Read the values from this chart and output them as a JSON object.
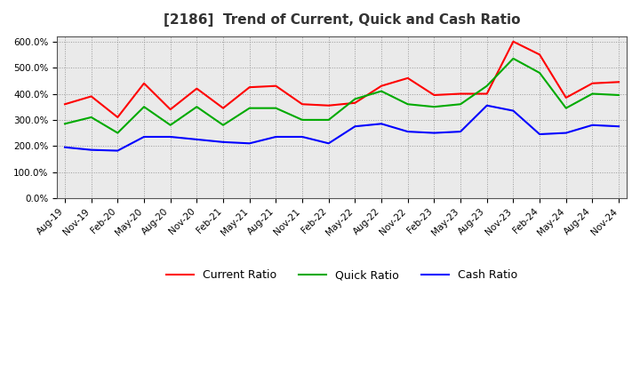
{
  "title": "[2186]  Trend of Current, Quick and Cash Ratio",
  "x_labels": [
    "Aug-19",
    "Nov-19",
    "Feb-20",
    "May-20",
    "Aug-20",
    "Nov-20",
    "Feb-21",
    "May-21",
    "Aug-21",
    "Nov-21",
    "Feb-22",
    "May-22",
    "Aug-22",
    "Nov-22",
    "Feb-23",
    "May-23",
    "Aug-23",
    "Nov-23",
    "Feb-24",
    "May-24",
    "Aug-24",
    "Nov-24"
  ],
  "current_ratio": [
    360,
    390,
    310,
    440,
    340,
    420,
    345,
    425,
    430,
    360,
    355,
    365,
    430,
    460,
    395,
    400,
    400,
    600,
    550,
    385,
    440,
    445
  ],
  "quick_ratio": [
    285,
    310,
    250,
    350,
    280,
    350,
    280,
    345,
    345,
    300,
    300,
    380,
    410,
    360,
    350,
    360,
    430,
    535,
    480,
    345,
    400,
    395
  ],
  "cash_ratio": [
    195,
    185,
    182,
    235,
    235,
    225,
    215,
    210,
    235,
    235,
    210,
    275,
    285,
    255,
    250,
    255,
    355,
    335,
    245,
    250,
    280,
    275
  ],
  "current_color": "#FF0000",
  "quick_color": "#00AA00",
  "cash_color": "#0000FF",
  "ylim": [
    0,
    620
  ],
  "yticks": [
    0,
    100,
    200,
    300,
    400,
    500,
    600
  ],
  "plot_bg_color": "#EAEAEA",
  "background_color": "#FFFFFF",
  "grid_color": "#999999",
  "title_fontsize": 11,
  "tick_fontsize": 7.5
}
